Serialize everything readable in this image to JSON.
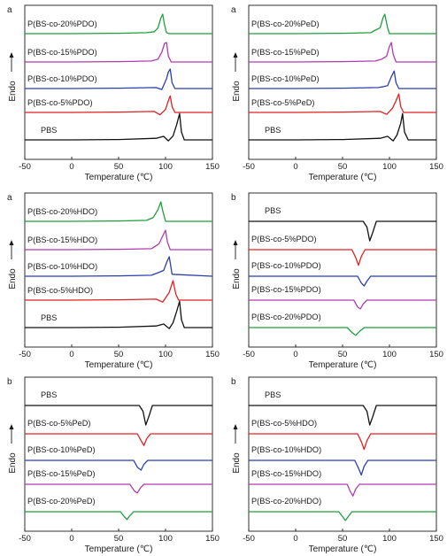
{
  "chart_data": [
    {
      "type": "line",
      "panel_letter": "a",
      "xlabel": "Temperature (℃)",
      "ylabel": "Endo",
      "xlim": [
        -50,
        150
      ],
      "xticks": [
        -50,
        0,
        50,
        100,
        150
      ],
      "direction": "up",
      "series": [
        {
          "name": "P(BS-co-20%PDO)",
          "color": "#1f9e3c",
          "x": [
            -50,
            0,
            50,
            80,
            88,
            92,
            95,
            97,
            99,
            101,
            104,
            150
          ],
          "y": [
            0,
            0,
            0.02,
            0.05,
            0.1,
            0.3,
            0.8,
            1.0,
            0.45,
            0.05,
            0.0,
            0.0
          ]
        },
        {
          "name": "P(BS-co-15%PDO)",
          "color": "#b03ab0",
          "x": [
            -50,
            0,
            50,
            85,
            92,
            96,
            99,
            101,
            103,
            106,
            150
          ],
          "y": [
            0,
            0,
            0.02,
            0.05,
            0.15,
            0.5,
            0.95,
            1.0,
            0.3,
            0.0,
            0.0
          ]
        },
        {
          "name": "P(BS-co-10%PDO)",
          "color": "#2b3fa8",
          "x": [
            -50,
            0,
            50,
            90,
            96,
            101,
            103,
            105,
            107,
            110,
            150
          ],
          "y": [
            0,
            0,
            0.02,
            0.05,
            -0.05,
            0.5,
            0.85,
            1.0,
            0.3,
            0.0,
            0.0
          ]
        },
        {
          "name": "P(BS-co-5%PDO)",
          "color": "#e02020",
          "x": [
            -50,
            0,
            50,
            88,
            94,
            100,
            103,
            105,
            107,
            110,
            150
          ],
          "y": [
            0,
            0,
            0.02,
            0.05,
            -0.12,
            0.15,
            0.6,
            0.85,
            0.3,
            0.0,
            0.0
          ]
        },
        {
          "name": "PBS",
          "color": "#111111",
          "x": [
            -50,
            0,
            50,
            90,
            98,
            103,
            108,
            112,
            115,
            117,
            120,
            150
          ],
          "y": [
            0,
            0,
            0.02,
            0.08,
            0.18,
            -0.05,
            0.2,
            0.8,
            1.35,
            0.4,
            0.0,
            0.0
          ]
        }
      ]
    },
    {
      "type": "line",
      "panel_letter": "a",
      "xlabel": "Temperature (℃)",
      "ylabel": "Endo",
      "xlim": [
        -50,
        150
      ],
      "xticks": [
        -50,
        0,
        50,
        100,
        150
      ],
      "direction": "up",
      "series": [
        {
          "name": "P(BS-co-20%PeD)",
          "color": "#1f9e3c",
          "x": [
            -50,
            0,
            50,
            80,
            85,
            90,
            93,
            95,
            98,
            100,
            150
          ],
          "y": [
            0,
            0,
            0.02,
            0.05,
            0.18,
            0.3,
            0.8,
            1.0,
            0.3,
            0.0,
            0.0
          ]
        },
        {
          "name": "P(BS-co-15%PeD)",
          "color": "#b03ab0",
          "x": [
            -50,
            0,
            50,
            85,
            92,
            97,
            100,
            102,
            104,
            107,
            150
          ],
          "y": [
            0,
            0,
            0.02,
            0.05,
            0.15,
            0.3,
            0.8,
            1.0,
            0.4,
            0.0,
            0.0
          ]
        },
        {
          "name": "P(BS-co-10%PeD)",
          "color": "#2b3fa8",
          "x": [
            -50,
            0,
            50,
            88,
            94,
            98,
            102,
            105,
            107,
            110,
            150
          ],
          "y": [
            0,
            0,
            0.02,
            0.05,
            0.1,
            0.15,
            0.6,
            0.9,
            0.3,
            0.0,
            0.0
          ]
        },
        {
          "name": "P(BS-co-5%PeD)",
          "color": "#e02020",
          "x": [
            -50,
            0,
            50,
            90,
            97,
            103,
            107,
            110,
            112,
            115,
            150
          ],
          "y": [
            0,
            0,
            0.02,
            0.05,
            -0.1,
            0.2,
            0.6,
            0.95,
            0.3,
            0.0,
            0.0
          ]
        },
        {
          "name": "PBS",
          "color": "#111111",
          "x": [
            -50,
            0,
            50,
            90,
            98,
            104,
            108,
            112,
            114,
            116,
            120,
            150
          ],
          "y": [
            0,
            0,
            0.02,
            0.08,
            0.18,
            -0.05,
            0.25,
            0.85,
            1.35,
            0.4,
            0.0,
            0.0
          ]
        }
      ]
    },
    {
      "type": "line",
      "panel_letter": "a",
      "xlabel": "Temperature (℃)",
      "ylabel": "Endo",
      "xlim": [
        -50,
        150
      ],
      "xticks": [
        -50,
        0,
        50,
        100,
        150
      ],
      "direction": "up",
      "series": [
        {
          "name": "P(BS-co-20%HDO)",
          "color": "#1f9e3c",
          "x": [
            -50,
            0,
            50,
            80,
            87,
            92,
            95,
            97,
            100,
            150
          ],
          "y": [
            0,
            0,
            0.02,
            0.05,
            0.2,
            0.6,
            1.0,
            0.55,
            0.0,
            0.0
          ]
        },
        {
          "name": "P(BS-co-15%HDO)",
          "color": "#b03ab0",
          "x": [
            -50,
            0,
            50,
            85,
            93,
            97,
            100,
            102,
            105,
            150
          ],
          "y": [
            0,
            0,
            0.02,
            0.05,
            0.3,
            0.7,
            1.0,
            0.4,
            0.0,
            0.0
          ]
        },
        {
          "name": "P(BS-co-10%HDO)",
          "color": "#2b3fa8",
          "x": [
            -50,
            0,
            50,
            85,
            93,
            98,
            102,
            104,
            107,
            150
          ],
          "y": [
            0,
            0,
            0.02,
            0.05,
            0.2,
            0.3,
            0.8,
            1.0,
            0.1,
            0.0
          ]
        },
        {
          "name": "P(BS-co-5%HDO)",
          "color": "#e02020",
          "x": [
            -50,
            0,
            50,
            90,
            97,
            104,
            108,
            111,
            114,
            150
          ],
          "y": [
            0,
            0,
            0.02,
            0.05,
            -0.1,
            0.4,
            1.0,
            0.3,
            0.0,
            0.0
          ]
        },
        {
          "name": "PBS",
          "color": "#111111",
          "x": [
            -50,
            0,
            50,
            90,
            98,
            104,
            108,
            112,
            115,
            117,
            120,
            150
          ],
          "y": [
            0,
            0,
            0.02,
            0.08,
            0.18,
            -0.05,
            0.25,
            0.85,
            1.35,
            0.4,
            0.0,
            0.0
          ]
        }
      ]
    },
    {
      "type": "line",
      "panel_letter": "b",
      "xlabel": "Temperature (℃)",
      "ylabel": "Endo",
      "xlim": [
        -50,
        150
      ],
      "xticks": [
        -50,
        0,
        50,
        100,
        150
      ],
      "direction": "up",
      "series": [
        {
          "name": "PBS",
          "color": "#111111",
          "x": [
            -50,
            0,
            50,
            72,
            76,
            79,
            82,
            86,
            150
          ],
          "y": [
            0,
            0,
            0,
            0.0,
            -0.3,
            -1.0,
            -0.6,
            0.0,
            0.0
          ]
        },
        {
          "name": "P(BS-co-5%PDO)",
          "color": "#e02020",
          "x": [
            -50,
            0,
            50,
            60,
            64,
            67,
            70,
            74,
            150
          ],
          "y": [
            0,
            0,
            0,
            0.0,
            -0.4,
            -0.8,
            -0.35,
            0.0,
            0.0
          ]
        },
        {
          "name": "P(BS-co-10%PDO)",
          "color": "#2b3fa8",
          "x": [
            -50,
            0,
            50,
            66,
            70,
            73,
            76,
            80,
            150
          ],
          "y": [
            0,
            0,
            0,
            0.0,
            -0.35,
            -0.5,
            -0.25,
            0.0,
            0.0
          ]
        },
        {
          "name": "P(BS-co-15%PDO)",
          "color": "#b03ab0",
          "x": [
            -50,
            0,
            50,
            62,
            66,
            69,
            72,
            76,
            150
          ],
          "y": [
            0,
            0,
            0,
            0.0,
            -0.35,
            -0.45,
            -0.2,
            0.0,
            0.0
          ]
        },
        {
          "name": "P(BS-co-20%PDO)",
          "color": "#1f9e3c",
          "x": [
            -50,
            0,
            40,
            55,
            60,
            64,
            68,
            73,
            150
          ],
          "y": [
            0,
            0,
            0,
            0.0,
            -0.25,
            -0.4,
            -0.2,
            0.0,
            0.0
          ]
        }
      ]
    },
    {
      "type": "line",
      "panel_letter": "b",
      "xlabel": "Temperature (℃)",
      "ylabel": "Endo",
      "xlim": [
        -50,
        150
      ],
      "xticks": [
        -50,
        0,
        50,
        100,
        150
      ],
      "direction": "up",
      "series": [
        {
          "name": "PBS",
          "color": "#111111",
          "x": [
            -50,
            0,
            50,
            72,
            76,
            79,
            82,
            86,
            150
          ],
          "y": [
            0,
            0,
            0,
            0.0,
            -0.3,
            -1.0,
            -0.6,
            0.0,
            0.0
          ]
        },
        {
          "name": "P(BS-co-5%PeD)",
          "color": "#e02020",
          "x": [
            -50,
            0,
            50,
            70,
            74,
            77,
            80,
            84,
            150
          ],
          "y": [
            0,
            0,
            0,
            0.0,
            -0.35,
            -0.6,
            -0.25,
            0.0,
            0.0
          ]
        },
        {
          "name": "P(BS-co-10%PeD)",
          "color": "#2b3fa8",
          "x": [
            -50,
            0,
            50,
            66,
            70,
            74,
            77,
            81,
            150
          ],
          "y": [
            0,
            0,
            0,
            0.0,
            -0.35,
            -0.5,
            -0.2,
            0.0,
            0.0
          ]
        },
        {
          "name": "P(BS-co-15%PeD)",
          "color": "#b03ab0",
          "x": [
            -50,
            0,
            50,
            62,
            67,
            70,
            73,
            77,
            150
          ],
          "y": [
            0,
            0,
            0,
            0.0,
            -0.35,
            -0.45,
            -0.2,
            0.0,
            0.0
          ]
        },
        {
          "name": "P(BS-co-20%PeD)",
          "color": "#1f9e3c",
          "x": [
            -50,
            0,
            40,
            52,
            56,
            59,
            62,
            66,
            150
          ],
          "y": [
            0,
            0,
            0,
            0.0,
            -0.25,
            -0.4,
            -0.2,
            0.0,
            0.0
          ]
        }
      ]
    },
    {
      "type": "line",
      "panel_letter": "b",
      "xlabel": "Temperature (℃)",
      "ylabel": "Endo",
      "xlim": [
        -50,
        150
      ],
      "xticks": [
        -50,
        0,
        50,
        100,
        150
      ],
      "direction": "up",
      "series": [
        {
          "name": "PBS",
          "color": "#111111",
          "x": [
            -50,
            0,
            50,
            72,
            76,
            79,
            82,
            86,
            150
          ],
          "y": [
            0,
            0,
            0,
            0.0,
            -0.3,
            -1.0,
            -0.6,
            0.0,
            0.0
          ]
        },
        {
          "name": "P(BS-co-5%HDO)",
          "color": "#e02020",
          "x": [
            -50,
            0,
            50,
            66,
            70,
            73,
            76,
            80,
            150
          ],
          "y": [
            0,
            0,
            0,
            0.0,
            -0.4,
            -0.8,
            -0.35,
            0.0,
            0.0
          ]
        },
        {
          "name": "P(BS-co-10%HDO)",
          "color": "#2b3fa8",
          "x": [
            -50,
            0,
            50,
            63,
            67,
            70,
            73,
            77,
            150
          ],
          "y": [
            0,
            0,
            0,
            0.0,
            -0.4,
            -0.75,
            -0.3,
            0.0,
            0.0
          ]
        },
        {
          "name": "P(BS-co-15%HDO)",
          "color": "#b03ab0",
          "x": [
            -50,
            0,
            45,
            55,
            58,
            61,
            64,
            68,
            150
          ],
          "y": [
            0,
            0,
            0,
            0.0,
            -0.35,
            -0.6,
            -0.25,
            0.0,
            0.0
          ]
        },
        {
          "name": "P(BS-co-20%HDO)",
          "color": "#1f9e3c",
          "x": [
            -50,
            0,
            40,
            46,
            50,
            53,
            56,
            60,
            150
          ],
          "y": [
            0,
            0,
            0,
            0.0,
            -0.25,
            -0.45,
            -0.25,
            0.0,
            0.0
          ]
        }
      ]
    }
  ]
}
